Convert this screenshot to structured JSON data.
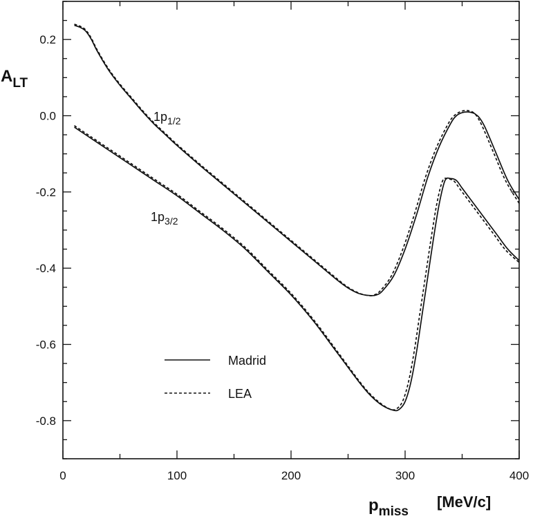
{
  "chart_data": {
    "type": "line",
    "title": "",
    "xlabel_main": "p",
    "xlabel_sub": "miss",
    "xlabel_units": "[MeV/c]",
    "ylabel_main": "A",
    "ylabel_sub": "LT",
    "xlim": [
      0,
      400
    ],
    "ylim": [
      -0.9,
      0.3
    ],
    "x_ticks": [
      0,
      100,
      200,
      300,
      400
    ],
    "x_tick_labels": [
      "0",
      "100",
      "200",
      "300",
      "400"
    ],
    "y_ticks": [
      0.2,
      0.0,
      -0.2,
      -0.4,
      -0.6,
      -0.8
    ],
    "y_tick_labels": [
      "0.2",
      "0.0",
      "-0.2",
      "-0.4",
      "-0.6",
      "-0.8"
    ],
    "grid": false,
    "legend": [
      {
        "name": "Madrid",
        "style": "solid"
      },
      {
        "name": "LEA",
        "style": "dashed"
      }
    ],
    "annotations": [
      {
        "label": "1p",
        "sub": "1/2",
        "x": 80,
        "y": -0.01
      },
      {
        "label": "1p",
        "sub": "3/2",
        "x": 78,
        "y": -0.27
      }
    ],
    "series": [
      {
        "name": "Madrid 1p1/2",
        "style": "solid",
        "x": [
          10,
          15,
          20,
          25,
          30,
          40,
          50,
          60,
          70,
          80,
          90,
          100,
          120,
          140,
          160,
          180,
          200,
          220,
          240,
          250,
          260,
          270,
          275,
          280,
          290,
          300,
          310,
          320,
          330,
          340,
          345,
          350,
          355,
          360,
          362,
          365,
          370,
          380,
          390,
          400
        ],
        "y": [
          0.237,
          0.232,
          0.222,
          0.2,
          0.17,
          0.12,
          0.08,
          0.045,
          0.01,
          -0.022,
          -0.05,
          -0.078,
          -0.13,
          -0.18,
          -0.23,
          -0.28,
          -0.33,
          -0.38,
          -0.43,
          -0.452,
          -0.467,
          -0.472,
          -0.47,
          -0.46,
          -0.42,
          -0.35,
          -0.26,
          -0.16,
          -0.08,
          -0.02,
          0.0,
          0.008,
          0.01,
          0.007,
          0.003,
          -0.005,
          -0.03,
          -0.1,
          -0.17,
          -0.22
        ]
      },
      {
        "name": "LEA 1p1/2",
        "style": "dashed",
        "x": [
          10,
          15,
          20,
          25,
          30,
          40,
          50,
          60,
          70,
          80,
          90,
          100,
          120,
          140,
          160,
          180,
          200,
          220,
          240,
          250,
          260,
          268,
          273,
          278,
          288,
          298,
          308,
          318,
          328,
          338,
          343,
          348,
          353,
          357,
          360,
          363,
          368,
          378,
          388,
          400
        ],
        "y": [
          0.24,
          0.235,
          0.225,
          0.203,
          0.173,
          0.123,
          0.083,
          0.048,
          0.013,
          -0.019,
          -0.047,
          -0.075,
          -0.127,
          -0.177,
          -0.227,
          -0.277,
          -0.327,
          -0.377,
          -0.427,
          -0.45,
          -0.466,
          -0.472,
          -0.47,
          -0.46,
          -0.42,
          -0.35,
          -0.26,
          -0.16,
          -0.08,
          -0.02,
          0.0,
          0.01,
          0.014,
          0.012,
          0.008,
          -0.002,
          -0.03,
          -0.1,
          -0.17,
          -0.23
        ]
      },
      {
        "name": "Madrid 1p3/2",
        "style": "solid",
        "x": [
          10,
          20,
          40,
          60,
          80,
          100,
          120,
          140,
          160,
          180,
          200,
          220,
          240,
          260,
          270,
          280,
          290,
          295,
          300,
          305,
          310,
          315,
          320,
          325,
          330,
          335,
          340,
          345,
          350,
          360,
          370,
          380,
          390,
          400
        ],
        "y": [
          -0.03,
          -0.05,
          -0.09,
          -0.13,
          -0.17,
          -0.21,
          -0.255,
          -0.3,
          -0.35,
          -0.41,
          -0.47,
          -0.54,
          -0.62,
          -0.7,
          -0.735,
          -0.76,
          -0.773,
          -0.77,
          -0.75,
          -0.7,
          -0.62,
          -0.52,
          -0.42,
          -0.32,
          -0.23,
          -0.17,
          -0.165,
          -0.17,
          -0.19,
          -0.23,
          -0.27,
          -0.31,
          -0.35,
          -0.38
        ]
      },
      {
        "name": "LEA 1p3/2",
        "style": "dashed",
        "x": [
          10,
          20,
          40,
          60,
          80,
          100,
          120,
          140,
          160,
          180,
          200,
          220,
          240,
          260,
          270,
          280,
          288,
          293,
          298,
          303,
          308,
          313,
          318,
          323,
          328,
          333,
          338,
          343,
          348,
          358,
          368,
          378,
          388,
          400
        ],
        "y": [
          -0.026,
          -0.046,
          -0.086,
          -0.126,
          -0.166,
          -0.206,
          -0.251,
          -0.296,
          -0.346,
          -0.406,
          -0.466,
          -0.536,
          -0.616,
          -0.697,
          -0.732,
          -0.758,
          -0.771,
          -0.768,
          -0.748,
          -0.698,
          -0.618,
          -0.518,
          -0.418,
          -0.318,
          -0.228,
          -0.17,
          -0.166,
          -0.172,
          -0.192,
          -0.232,
          -0.272,
          -0.312,
          -0.352,
          -0.385
        ]
      }
    ]
  }
}
